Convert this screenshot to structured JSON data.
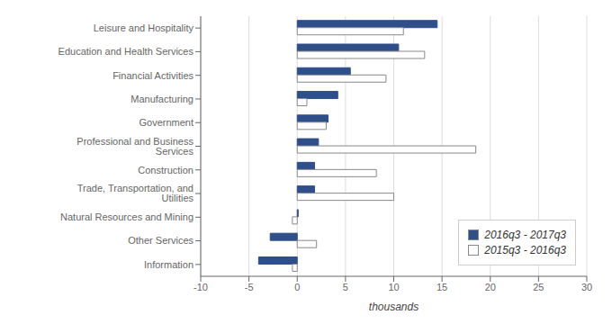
{
  "chart_data": {
    "type": "bar",
    "orientation": "horizontal",
    "categories": [
      "Leisure and Hospitality",
      "Education and Health Services",
      "Financial Activities",
      "Manufacturing",
      "Government",
      "Professional and Business Services",
      "Construction",
      "Trade, Transportation, and Utilities",
      "Natural Resources and Mining",
      "Other Services",
      "Information"
    ],
    "series": [
      {
        "name": "2016q3 - 2017q3",
        "color": "#2E4F8A",
        "values": [
          14.5,
          10.5,
          5.5,
          4.2,
          3.2,
          2.2,
          1.8,
          1.8,
          0.1,
          -2.8,
          -4.0
        ]
      },
      {
        "name": "2015q3 - 2016q3",
        "color": "#FFFFFF",
        "values": [
          11.0,
          13.2,
          9.2,
          1.0,
          3.0,
          18.5,
          8.2,
          10.0,
          -0.5,
          2.0,
          -0.5
        ]
      }
    ],
    "xlabel": "thousands",
    "xlim": [
      -10,
      30
    ],
    "xticks": [
      -10,
      -5,
      0,
      5,
      10,
      15,
      20,
      25,
      30
    ],
    "grid": true,
    "legend": "lower right"
  }
}
